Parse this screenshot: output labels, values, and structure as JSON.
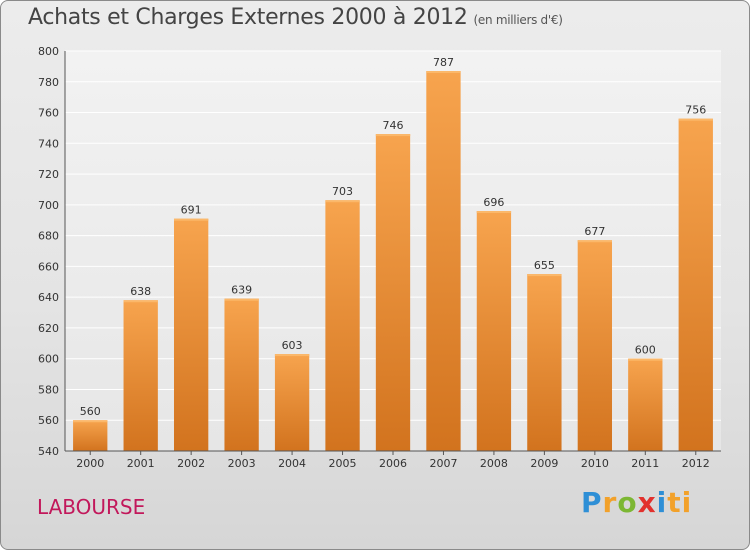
{
  "header": {
    "title": "Achats et Charges Externes 2000 à 2012",
    "subtitle": "(en milliers d'€)"
  },
  "location": "LABOURSE",
  "logo": {
    "letters": [
      "P",
      "r",
      "o",
      "x",
      "i",
      "ti"
    ]
  },
  "colors": {
    "bar": "#f0963a",
    "bar_dark": "#d2731e",
    "text": "#333333",
    "location": "#c2185b"
  },
  "chart_data": {
    "type": "bar",
    "title": "Achats et Charges Externes 2000 à 2012",
    "subtitle": "(en milliers d'€)",
    "categories": [
      "2000",
      "2001",
      "2002",
      "2003",
      "2004",
      "2005",
      "2006",
      "2007",
      "2008",
      "2009",
      "2010",
      "2011",
      "2012"
    ],
    "values": [
      560,
      638,
      691,
      639,
      603,
      703,
      746,
      787,
      696,
      655,
      677,
      600,
      756
    ],
    "ylim": [
      540,
      800
    ],
    "yticks": [
      540,
      560,
      580,
      600,
      620,
      640,
      660,
      680,
      700,
      720,
      740,
      760,
      780,
      800
    ],
    "grid": true,
    "data_labels": true
  }
}
